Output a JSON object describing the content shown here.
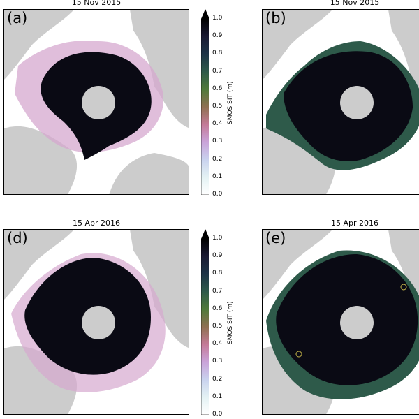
{
  "panels": [
    {
      "letter": "(a)",
      "date": "15 Nov 2015"
    },
    {
      "letter": "(b)",
      "date": "15 Nov 2015"
    },
    {
      "letter": "(d)",
      "date": "15 Apr 2016"
    },
    {
      "letter": "(e)",
      "date": "15 Apr 2016"
    }
  ],
  "colorbar": {
    "label": "SMOS SIT (m)",
    "ticks": [
      "1.0",
      "0.9",
      "0.8",
      "0.7",
      "0.6",
      "0.5",
      "0.4",
      "0.3",
      "0.2",
      "0.1",
      "0.0"
    ],
    "stops": [
      "#000000",
      "#1a1a33",
      "#1d3447",
      "#2e5a4a",
      "#4f7a3a",
      "#8e7050",
      "#c47a98",
      "#c9a3d9",
      "#c9d2ee",
      "#e4f2f4",
      "#ffffff"
    ]
  },
  "colors": {
    "land": "#cccccc",
    "ice_thick": "#0a0a14",
    "pole_hole": "#cccccc",
    "ocean": "#ffffff"
  }
}
